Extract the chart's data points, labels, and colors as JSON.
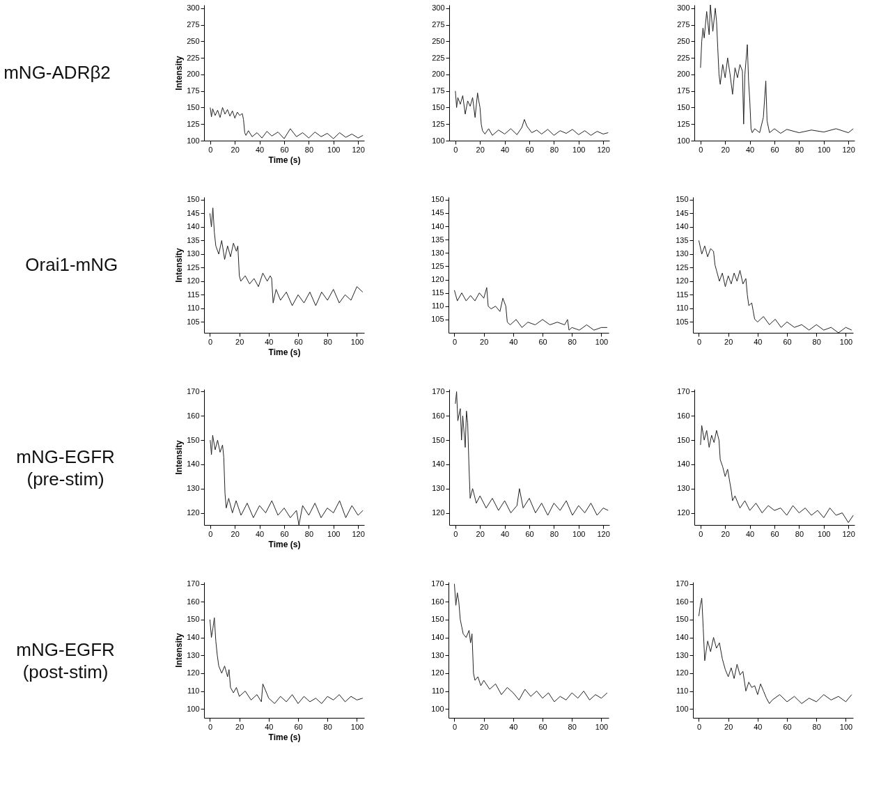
{
  "chart_data": [
    {
      "type": "line",
      "title": "mNG-ADRβ2",
      "xlabel": "Time (s)",
      "ylabel": "Intensity",
      "xlim": [
        -5,
        125
      ],
      "xticks": [
        0,
        20,
        40,
        60,
        80,
        100,
        120
      ],
      "ylim": [
        100,
        305
      ],
      "yticks": [
        100,
        125,
        150,
        175,
        200,
        225,
        250,
        275,
        300
      ],
      "grid": false,
      "x": [
        0,
        1,
        2,
        4,
        6,
        8,
        10,
        12,
        14,
        16,
        18,
        20,
        22,
        24,
        26,
        27,
        28,
        29,
        31,
        34,
        38,
        42,
        46,
        50,
        55,
        60,
        65,
        70,
        75,
        80,
        85,
        90,
        95,
        100,
        105,
        110,
        115,
        120,
        124
      ],
      "series": [
        {
          "color": "#222222",
          "values": [
            150,
            136,
            148,
            138,
            146,
            135,
            150,
            140,
            147,
            137,
            145,
            134,
            143,
            138,
            141,
            132,
            112,
            108,
            115,
            106,
            112,
            104,
            114,
            107,
            113,
            103,
            118,
            106,
            112,
            104,
            113,
            106,
            111,
            103,
            112,
            105,
            110,
            104,
            108
          ]
        }
      ]
    },
    {
      "type": "line",
      "xlim": [
        -5,
        125
      ],
      "xticks": [
        0,
        20,
        40,
        60,
        80,
        100,
        120
      ],
      "ylim": [
        100,
        305
      ],
      "yticks": [
        100,
        125,
        150,
        175,
        200,
        225,
        250,
        275,
        300
      ],
      "grid": false,
      "x": [
        0,
        1,
        2,
        4,
        6,
        8,
        10,
        12,
        14,
        16,
        18,
        19,
        20,
        21,
        22,
        24,
        27,
        30,
        35,
        40,
        45,
        50,
        54,
        56,
        58,
        62,
        66,
        70,
        75,
        80,
        85,
        90,
        95,
        100,
        105,
        110,
        115,
        120,
        124
      ],
      "series": [
        {
          "color": "#222222",
          "values": [
            175,
            150,
            165,
            155,
            168,
            140,
            160,
            152,
            165,
            135,
            172,
            160,
            150,
            125,
            115,
            110,
            118,
            108,
            116,
            110,
            118,
            109,
            120,
            132,
            122,
            112,
            116,
            110,
            117,
            108,
            115,
            111,
            117,
            109,
            115,
            108,
            114,
            110,
            112
          ]
        }
      ]
    },
    {
      "type": "line",
      "xlim": [
        -5,
        125
      ],
      "xticks": [
        0,
        20,
        40,
        60,
        80,
        100,
        120
      ],
      "ylim": [
        100,
        305
      ],
      "yticks": [
        100,
        125,
        150,
        175,
        200,
        225,
        250,
        275,
        300
      ],
      "grid": false,
      "x": [
        0,
        1,
        2,
        3,
        5,
        7,
        8,
        10,
        12,
        13,
        14,
        15,
        16,
        18,
        20,
        22,
        24,
        26,
        28,
        30,
        32,
        34,
        35,
        36,
        38,
        39,
        40,
        41,
        42,
        44,
        48,
        51,
        53,
        54,
        56,
        60,
        65,
        70,
        80,
        90,
        100,
        110,
        120,
        124
      ],
      "series": [
        {
          "color": "#222222",
          "values": [
            210,
            250,
            270,
            255,
            295,
            260,
            305,
            265,
            300,
            280,
            240,
            200,
            185,
            215,
            195,
            225,
            200,
            170,
            210,
            195,
            215,
            205,
            125,
            200,
            245,
            190,
            160,
            118,
            112,
            118,
            112,
            135,
            190,
            130,
            112,
            118,
            111,
            117,
            112,
            116,
            113,
            118,
            112,
            118
          ]
        }
      ]
    },
    {
      "type": "line",
      "title": "Orai1-mNG",
      "xlabel": "Time (s)",
      "ylabel": "Intensity",
      "xlim": [
        -4,
        105
      ],
      "xticks": [
        0,
        20,
        40,
        60,
        80,
        100
      ],
      "ylim": [
        101,
        151
      ],
      "yticks": [
        105,
        110,
        115,
        120,
        125,
        130,
        135,
        140,
        145,
        150
      ],
      "grid": false,
      "x": [
        0,
        1,
        2,
        3,
        4,
        6,
        8,
        10,
        12,
        14,
        16,
        18,
        19,
        20,
        21,
        24,
        27,
        30,
        33,
        36,
        39,
        41,
        42,
        43,
        45,
        48,
        52,
        56,
        60,
        64,
        68,
        72,
        76,
        80,
        84,
        88,
        92,
        96,
        100,
        104
      ],
      "series": [
        {
          "color": "#222222",
          "values": [
            145,
            140,
            147,
            138,
            133,
            130,
            135,
            128,
            133,
            129,
            134,
            131,
            133,
            122,
            120,
            122,
            119,
            121,
            118,
            123,
            120,
            122,
            121,
            112,
            117,
            113,
            116,
            111,
            115,
            112,
            116,
            111,
            116,
            113,
            117,
            112,
            115,
            113,
            118,
            116
          ]
        }
      ]
    },
    {
      "type": "line",
      "xlim": [
        -4,
        105
      ],
      "xticks": [
        0,
        20,
        40,
        60,
        80,
        100
      ],
      "ylim": [
        100,
        151
      ],
      "yticks": [
        105,
        110,
        115,
        120,
        125,
        130,
        135,
        140,
        145,
        150
      ],
      "grid": false,
      "x": [
        0,
        2,
        5,
        8,
        11,
        14,
        17,
        20,
        22,
        23,
        25,
        28,
        31,
        33,
        35,
        36,
        38,
        42,
        46,
        50,
        55,
        60,
        65,
        70,
        75,
        77,
        78,
        80,
        85,
        90,
        95,
        100,
        104
      ],
      "series": [
        {
          "color": "#222222",
          "values": [
            116,
            112,
            115,
            112,
            114,
            112,
            115,
            113,
            117,
            110,
            109,
            110,
            108,
            113,
            110,
            104,
            103,
            105,
            102,
            104,
            103,
            105,
            103,
            104,
            103,
            105,
            101,
            102,
            101,
            103,
            101,
            102,
            102
          ]
        }
      ]
    },
    {
      "type": "line",
      "xlim": [
        -4,
        105
      ],
      "xticks": [
        0,
        20,
        40,
        60,
        80,
        100
      ],
      "ylim": [
        101,
        151
      ],
      "yticks": [
        105,
        110,
        115,
        120,
        125,
        130,
        135,
        140,
        145,
        150
      ],
      "grid": false,
      "x": [
        0,
        2,
        4,
        6,
        8,
        10,
        11,
        12,
        14,
        16,
        18,
        20,
        22,
        24,
        26,
        28,
        30,
        32,
        33,
        34,
        36,
        37,
        38,
        40,
        44,
        48,
        52,
        56,
        60,
        65,
        70,
        75,
        80,
        85,
        90,
        95,
        100,
        104
      ],
      "series": [
        {
          "color": "#222222",
          "values": [
            135,
            130,
            133,
            129,
            132,
            131,
            126,
            124,
            120,
            123,
            118,
            122,
            119,
            123,
            120,
            124,
            119,
            121,
            115,
            111,
            112,
            109,
            106,
            105,
            107,
            104,
            106,
            103,
            105,
            103,
            104,
            102,
            104,
            102,
            103,
            101,
            103,
            102
          ]
        }
      ]
    },
    {
      "type": "line",
      "title": "mNG-EGFR\n(pre-stim)",
      "xlabel": "Time (s)",
      "ylabel": "Intensity",
      "xlim": [
        -5,
        125
      ],
      "xticks": [
        0,
        20,
        40,
        60,
        80,
        100,
        120
      ],
      "ylim": [
        115,
        171
      ],
      "yticks": [
        120,
        130,
        140,
        150,
        160,
        170
      ],
      "grid": false,
      "x": [
        0,
        1,
        2,
        4,
        6,
        8,
        10,
        11,
        12,
        13,
        15,
        18,
        21,
        25,
        30,
        35,
        40,
        45,
        50,
        55,
        60,
        65,
        70,
        72,
        75,
        80,
        85,
        90,
        95,
        100,
        105,
        110,
        115,
        120,
        124
      ],
      "series": [
        {
          "color": "#222222",
          "values": [
            150,
            144,
            152,
            146,
            150,
            145,
            148,
            143,
            128,
            122,
            126,
            120,
            125,
            119,
            124,
            118,
            123,
            120,
            125,
            119,
            122,
            118,
            121,
            115,
            123,
            119,
            124,
            118,
            122,
            120,
            125,
            118,
            123,
            119,
            121
          ]
        }
      ]
    },
    {
      "type": "line",
      "xlim": [
        -5,
        125
      ],
      "xticks": [
        0,
        20,
        40,
        60,
        80,
        100,
        120
      ],
      "ylim": [
        115,
        171
      ],
      "yticks": [
        120,
        130,
        140,
        150,
        160,
        170
      ],
      "grid": false,
      "x": [
        0,
        1,
        2,
        4,
        5,
        6,
        8,
        9,
        10,
        11,
        12,
        14,
        17,
        20,
        25,
        30,
        35,
        40,
        45,
        50,
        52,
        55,
        60,
        65,
        70,
        75,
        80,
        85,
        90,
        95,
        100,
        105,
        110,
        115,
        120,
        124
      ],
      "series": [
        {
          "color": "#222222",
          "values": [
            165,
            170,
            158,
            163,
            150,
            160,
            147,
            162,
            157,
            140,
            126,
            130,
            124,
            127,
            122,
            126,
            121,
            125,
            120,
            123,
            130,
            122,
            126,
            120,
            124,
            119,
            124,
            121,
            125,
            119,
            123,
            120,
            124,
            119,
            122,
            121
          ]
        }
      ]
    },
    {
      "type": "line",
      "xlim": [
        -5,
        125
      ],
      "xticks": [
        0,
        20,
        40,
        60,
        80,
        100,
        120
      ],
      "ylim": [
        115,
        171
      ],
      "yticks": [
        120,
        130,
        140,
        150,
        160,
        170
      ],
      "grid": false,
      "x": [
        0,
        1,
        3,
        5,
        7,
        9,
        11,
        13,
        15,
        16,
        18,
        20,
        22,
        24,
        25,
        26,
        28,
        32,
        36,
        40,
        45,
        50,
        55,
        60,
        65,
        70,
        75,
        80,
        85,
        90,
        95,
        100,
        105,
        110,
        115,
        120,
        124
      ],
      "series": [
        {
          "color": "#222222",
          "values": [
            148,
            156,
            150,
            154,
            147,
            152,
            149,
            154,
            150,
            142,
            139,
            135,
            138,
            132,
            129,
            125,
            127,
            122,
            125,
            121,
            124,
            120,
            123,
            121,
            122,
            119,
            123,
            120,
            122,
            119,
            121,
            118,
            122,
            119,
            120,
            116,
            119
          ]
        }
      ]
    },
    {
      "type": "line",
      "title": "mNG-EGFR\n(post-stim)",
      "xlabel": "Time (s)",
      "ylabel": "Intensity",
      "xlim": [
        -4,
        105
      ],
      "xticks": [
        0,
        20,
        40,
        60,
        80,
        100
      ],
      "ylim": [
        95,
        171
      ],
      "yticks": [
        100,
        110,
        120,
        130,
        140,
        150,
        160,
        170
      ],
      "grid": false,
      "x": [
        0,
        1,
        2,
        3,
        4,
        5,
        6,
        8,
        10,
        12,
        13,
        14,
        16,
        18,
        20,
        24,
        28,
        32,
        35,
        36,
        40,
        44,
        48,
        52,
        56,
        60,
        64,
        68,
        72,
        76,
        80,
        84,
        88,
        92,
        96,
        100,
        104
      ],
      "series": [
        {
          "color": "#222222",
          "values": [
            150,
            140,
            145,
            151,
            138,
            130,
            124,
            120,
            124,
            118,
            122,
            112,
            109,
            112,
            107,
            110,
            105,
            108,
            104,
            114,
            106,
            103,
            107,
            104,
            108,
            103,
            107,
            104,
            106,
            103,
            107,
            105,
            108,
            104,
            107,
            105,
            106
          ]
        }
      ]
    },
    {
      "type": "line",
      "xlim": [
        -4,
        105
      ],
      "xticks": [
        0,
        20,
        40,
        60,
        80,
        100
      ],
      "ylim": [
        95,
        171
      ],
      "yticks": [
        100,
        110,
        120,
        130,
        140,
        150,
        160,
        170
      ],
      "grid": false,
      "x": [
        0,
        1,
        2,
        3,
        4,
        5,
        6,
        8,
        10,
        11,
        12,
        13,
        14,
        16,
        18,
        20,
        24,
        28,
        32,
        36,
        40,
        44,
        48,
        52,
        56,
        60,
        64,
        68,
        72,
        76,
        80,
        84,
        88,
        92,
        96,
        100,
        104
      ],
      "series": [
        {
          "color": "#222222",
          "values": [
            170,
            158,
            165,
            160,
            150,
            146,
            142,
            140,
            144,
            137,
            142,
            120,
            116,
            118,
            113,
            116,
            111,
            114,
            108,
            112,
            109,
            105,
            111,
            107,
            110,
            106,
            109,
            104,
            107,
            105,
            109,
            106,
            110,
            105,
            108,
            106,
            109
          ]
        }
      ]
    },
    {
      "type": "line",
      "xlim": [
        -4,
        105
      ],
      "xticks": [
        0,
        20,
        40,
        60,
        80,
        100
      ],
      "ylim": [
        95,
        171
      ],
      "yticks": [
        100,
        110,
        120,
        130,
        140,
        150,
        160,
        170
      ],
      "grid": false,
      "x": [
        0,
        1,
        2,
        3,
        4,
        6,
        8,
        10,
        12,
        14,
        16,
        18,
        20,
        22,
        24,
        26,
        28,
        30,
        32,
        34,
        36,
        38,
        40,
        42,
        44,
        46,
        48,
        50,
        55,
        60,
        65,
        70,
        75,
        80,
        85,
        90,
        95,
        100,
        104
      ],
      "series": [
        {
          "color": "#222222",
          "values": [
            152,
            158,
            162,
            145,
            127,
            138,
            132,
            140,
            134,
            137,
            128,
            122,
            118,
            123,
            117,
            125,
            119,
            121,
            110,
            115,
            112,
            113,
            108,
            114,
            110,
            106,
            103,
            105,
            108,
            104,
            107,
            103,
            106,
            104,
            108,
            105,
            107,
            104,
            108
          ]
        }
      ]
    }
  ]
}
